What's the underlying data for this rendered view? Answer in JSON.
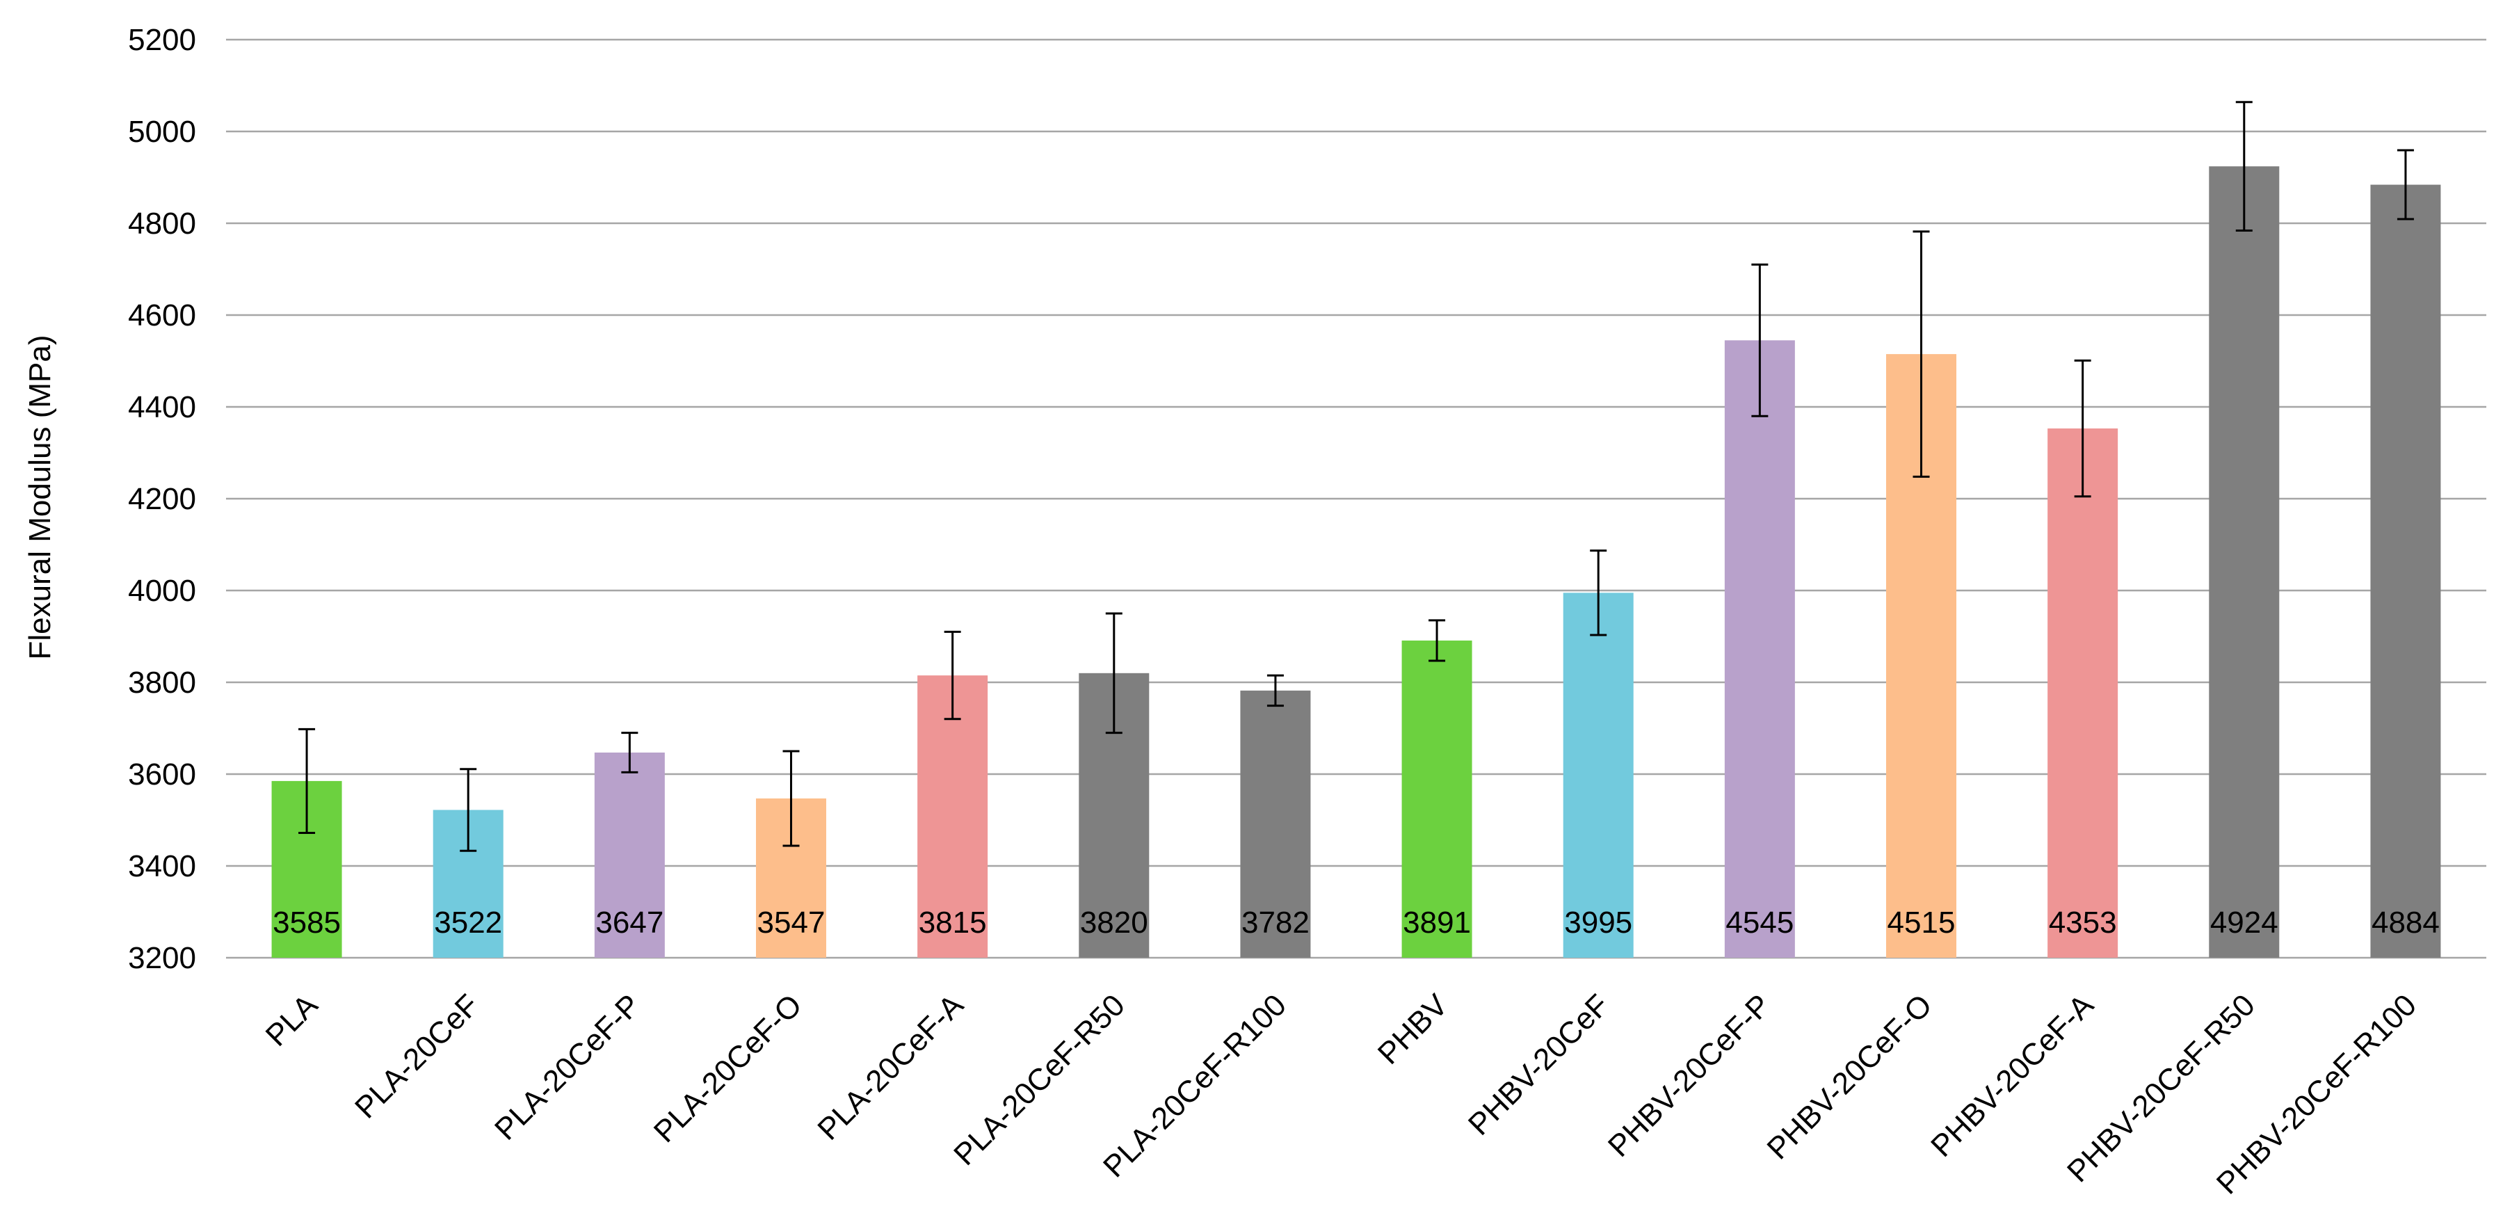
{
  "chart_data": {
    "type": "bar",
    "title": "",
    "xlabel": "",
    "ylabel": "Flexural Modulus (MPa)",
    "ylim": [
      3200,
      5200
    ],
    "ytick_step": 200,
    "yticks": [
      "3200",
      "3400",
      "3600",
      "3800",
      "4000",
      "4200",
      "4400",
      "4600",
      "4800",
      "5000",
      "5200"
    ],
    "grid": "horizontal",
    "legend": "none",
    "data_label_position": "inside-base",
    "categories": [
      "PLA",
      "PLA-20CeF",
      "PLA-20CeF-P",
      "PLA-20CeF-O",
      "PLA-20CeF-A",
      "PLA-20CeF-R50",
      "PLA-20CeF-R100",
      "PHBV",
      "PHBV-20CeF",
      "PHBV-20CeF-P",
      "PHBV-20CeF-O",
      "PHBV-20CeF-A",
      "PHBV-20CeF-R50",
      "PHBV-20CeF-R100"
    ],
    "values": [
      3585,
      3522,
      3647,
      3547,
      3815,
      3820,
      3782,
      3891,
      3995,
      4545,
      4515,
      4353,
      4924,
      4884
    ],
    "data_labels": [
      "3585",
      "3522",
      "3647",
      "3547",
      "3815",
      "3820",
      "3782",
      "3891",
      "3995",
      "4545",
      "4515",
      "4353",
      "4924",
      "4884"
    ],
    "error_bars": [
      113,
      89,
      43,
      103,
      95,
      130,
      33,
      44,
      92,
      165,
      267,
      148,
      140,
      75
    ],
    "colors": [
      "#6cd13f",
      "#72cadd",
      "#b8a1cb",
      "#fdbe8b",
      "#ee9595",
      "#7f7f7f",
      "#7f7f7f",
      "#6cd13f",
      "#72cadd",
      "#b8a1cb",
      "#fdbe8b",
      "#ee9595",
      "#7f7f7f",
      "#7f7f7f"
    ]
  }
}
